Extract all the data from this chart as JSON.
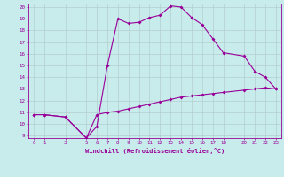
{
  "xlabel": "Windchill (Refroidissement éolien,°C)",
  "bg_color": "#c8ecec",
  "line_color": "#990099",
  "grid_color": "#b0c8c8",
  "xlim": [
    -0.5,
    23.5
  ],
  "ylim": [
    8.8,
    20.3
  ],
  "xticks": [
    0,
    1,
    3,
    5,
    6,
    7,
    8,
    9,
    10,
    11,
    12,
    13,
    14,
    15,
    16,
    17,
    18,
    20,
    21,
    22,
    23
  ],
  "yticks": [
    9,
    10,
    11,
    12,
    13,
    14,
    15,
    16,
    17,
    18,
    19,
    20
  ],
  "line1_x": [
    0,
    1,
    3,
    5,
    6,
    7,
    8,
    9,
    10,
    11,
    12,
    13,
    14,
    15,
    16,
    17,
    18,
    20,
    21,
    22,
    23
  ],
  "line1_y": [
    10.8,
    10.8,
    10.6,
    8.8,
    9.8,
    15.0,
    19.0,
    18.6,
    18.7,
    19.1,
    19.3,
    20.1,
    20.0,
    19.1,
    18.5,
    17.3,
    16.1,
    15.8,
    14.5,
    14.0,
    13.0
  ],
  "line2_x": [
    0,
    1,
    3,
    5,
    6,
    7,
    8,
    9,
    10,
    11,
    12,
    13,
    14,
    15,
    16,
    17,
    18,
    20,
    21,
    22,
    23
  ],
  "line2_y": [
    10.8,
    10.8,
    10.6,
    8.8,
    10.8,
    11.0,
    11.1,
    11.3,
    11.5,
    11.7,
    11.9,
    12.1,
    12.3,
    12.4,
    12.5,
    12.6,
    12.7,
    12.9,
    13.0,
    13.1,
    13.0
  ]
}
